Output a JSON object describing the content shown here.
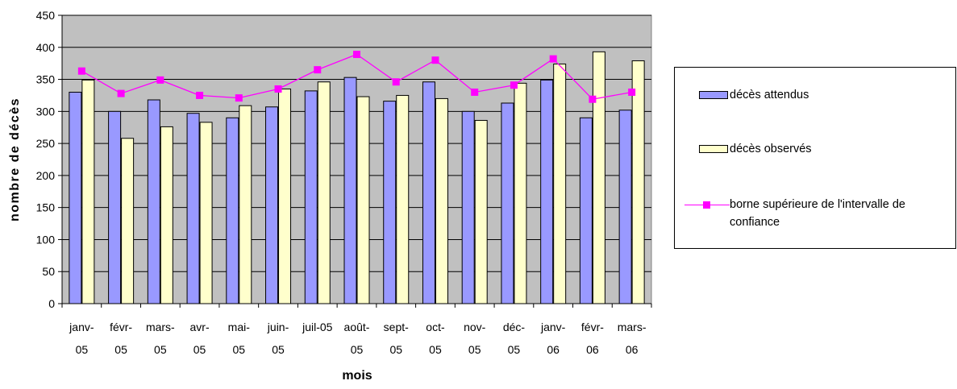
{
  "chart_data": {
    "type": "bar",
    "title": "",
    "xlabel": "mois",
    "ylabel": "nombre de décès",
    "ylim": [
      0,
      450
    ],
    "yticks": [
      0,
      50,
      100,
      150,
      200,
      250,
      300,
      350,
      400,
      450
    ],
    "grid": true,
    "legend_position": "right",
    "categories": [
      [
        "janv-",
        "05"
      ],
      [
        "févr-",
        "05"
      ],
      [
        "mars-",
        "05"
      ],
      [
        "avr-",
        "05"
      ],
      [
        "mai-",
        "05"
      ],
      [
        "juin-",
        "05"
      ],
      [
        "juil-05",
        ""
      ],
      [
        "août-",
        "05"
      ],
      [
        "sept-",
        "05"
      ],
      [
        "oct-",
        "05"
      ],
      [
        "nov-",
        "05"
      ],
      [
        "déc-",
        "05"
      ],
      [
        "janv-",
        "06"
      ],
      [
        "févr-",
        "06"
      ],
      [
        "mars-",
        "06"
      ]
    ],
    "series": [
      {
        "name": "décès attendus",
        "type": "bar",
        "color": "#9999ff",
        "values": [
          330,
          300,
          318,
          297,
          290,
          307,
          332,
          353,
          316,
          346,
          300,
          313,
          349,
          290,
          302
        ]
      },
      {
        "name": "décès observés",
        "type": "bar",
        "color": "#ffffcc",
        "values": [
          349,
          258,
          276,
          283,
          309,
          335,
          346,
          323,
          325,
          320,
          286,
          344,
          374,
          393,
          379
        ]
      },
      {
        "name": "borne supérieure de l'intervalle de confiance",
        "type": "line",
        "color": "#ff00ff",
        "values": [
          363,
          328,
          349,
          325,
          321,
          335,
          365,
          389,
          346,
          380,
          330,
          341,
          382,
          319,
          330
        ]
      }
    ],
    "plot_background": "#c0c0c0"
  },
  "legend": {
    "items": [
      "décès attendus",
      "décès observés",
      "borne supérieure de l'intervalle de confiance"
    ],
    "line3_wrap": [
      "borne supérieure de l'intervalle de",
      "confiance"
    ]
  }
}
